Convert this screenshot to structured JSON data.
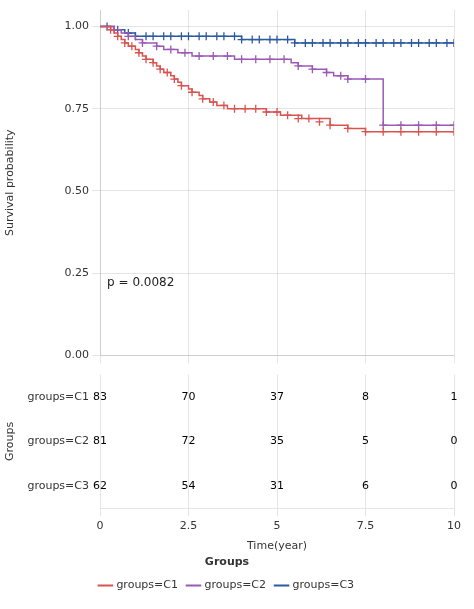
{
  "chart_data": {
    "type": "step",
    "xlabel": "Time(year)",
    "ylabel": "Survival probability",
    "annotation": "p = 0.0082",
    "legend_title": "Groups",
    "legend": "bottom",
    "grid": true,
    "xlim": [
      0,
      10
    ],
    "xticks": [
      0,
      2.5,
      5,
      7.5,
      10
    ],
    "ylim": [
      0.0,
      1.05
    ],
    "yticks": [
      {
        "value": 0.0,
        "label": "0.00"
      },
      {
        "value": 0.25,
        "label": "0.25"
      },
      {
        "value": 0.5,
        "label": "0.50"
      },
      {
        "value": 0.75,
        "label": "0.75"
      },
      {
        "value": 1.0,
        "label": "1.00"
      }
    ],
    "series": [
      {
        "name": "groups=C1",
        "color": "#d9534f",
        "marker": "cross",
        "x": [
          0.0,
          0.3,
          0.4,
          0.5,
          0.6,
          0.7,
          0.8,
          0.9,
          1.0,
          1.1,
          1.2,
          1.3,
          1.4,
          1.5,
          1.6,
          1.7,
          1.8,
          1.9,
          2.0,
          2.1,
          2.2,
          2.3,
          2.4,
          2.5,
          2.6,
          2.7,
          2.8,
          2.9,
          3.0,
          3.1,
          3.2,
          3.3,
          3.4,
          3.5,
          3.6,
          3.7,
          3.8,
          3.9,
          4.0,
          4.1,
          4.2,
          4.3,
          4.4,
          4.5,
          4.6,
          4.7,
          4.8,
          4.9,
          5.0,
          5.1,
          5.2,
          5.3,
          5.4,
          5.5,
          5.6,
          5.7,
          5.8,
          5.9,
          6.0,
          6.5,
          7.0,
          7.5,
          8.0,
          8.5,
          9.0,
          9.5,
          10.0
        ],
        "values": [
          1.0,
          0.99,
          0.98,
          0.97,
          0.96,
          0.95,
          0.94,
          0.94,
          0.93,
          0.92,
          0.91,
          0.9,
          0.9,
          0.89,
          0.88,
          0.87,
          0.86,
          0.86,
          0.85,
          0.84,
          0.83,
          0.82,
          0.82,
          0.81,
          0.8,
          0.8,
          0.79,
          0.78,
          0.78,
          0.77,
          0.77,
          0.76,
          0.76,
          0.76,
          0.75,
          0.75,
          0.75,
          0.75,
          0.75,
          0.75,
          0.75,
          0.75,
          0.75,
          0.75,
          0.75,
          0.74,
          0.74,
          0.74,
          0.74,
          0.73,
          0.73,
          0.73,
          0.73,
          0.73,
          0.73,
          0.72,
          0.72,
          0.72,
          0.72,
          0.7,
          0.69,
          0.68,
          0.68,
          0.68,
          0.68,
          0.68,
          0.68
        ],
        "censors": {
          "x": [
            0.3,
            0.5,
            0.7,
            0.9,
            1.1,
            1.3,
            1.5,
            1.7,
            1.9,
            2.1,
            2.3,
            2.6,
            2.9,
            3.2,
            3.5,
            3.8,
            4.1,
            4.4,
            4.7,
            5.0,
            5.3,
            5.6,
            5.9,
            6.2,
            6.5,
            7.0,
            7.5,
            8.0,
            8.5,
            9.0,
            9.5,
            10.0
          ],
          "values": [
            0.99,
            0.97,
            0.95,
            0.94,
            0.92,
            0.9,
            0.89,
            0.87,
            0.86,
            0.84,
            0.82,
            0.8,
            0.78,
            0.77,
            0.76,
            0.75,
            0.75,
            0.75,
            0.74,
            0.74,
            0.73,
            0.72,
            0.72,
            0.71,
            0.7,
            0.69,
            0.68,
            0.68,
            0.68,
            0.68,
            0.68,
            0.68
          ]
        }
      },
      {
        "name": "groups=C2",
        "color": "#9b59b6",
        "marker": "cross",
        "x": [
          0.0,
          0.4,
          0.6,
          0.8,
          1.0,
          1.2,
          1.4,
          1.6,
          1.8,
          2.0,
          2.2,
          2.4,
          2.6,
          2.8,
          3.0,
          3.2,
          3.4,
          3.6,
          3.8,
          4.0,
          4.2,
          4.4,
          4.6,
          4.8,
          5.0,
          5.2,
          5.4,
          5.6,
          5.8,
          6.0,
          6.2,
          6.4,
          6.6,
          6.8,
          7.0,
          7.5,
          8.0,
          8.5,
          9.0,
          9.5,
          10.0
        ],
        "values": [
          1.0,
          0.99,
          0.98,
          0.97,
          0.96,
          0.95,
          0.95,
          0.94,
          0.93,
          0.93,
          0.92,
          0.92,
          0.91,
          0.91,
          0.91,
          0.91,
          0.91,
          0.91,
          0.9,
          0.9,
          0.9,
          0.9,
          0.9,
          0.9,
          0.9,
          0.9,
          0.89,
          0.88,
          0.88,
          0.87,
          0.87,
          0.86,
          0.85,
          0.85,
          0.84,
          0.84,
          0.7,
          0.7,
          0.7,
          0.7,
          0.7
        ],
        "censors": {
          "x": [
            0.4,
            0.8,
            1.2,
            1.6,
            2.0,
            2.4,
            2.8,
            3.2,
            3.6,
            4.0,
            4.4,
            4.8,
            5.2,
            5.6,
            6.0,
            6.4,
            6.8,
            7.0,
            7.5,
            8.0,
            8.5,
            9.0,
            9.5,
            10.0
          ],
          "values": [
            0.99,
            0.97,
            0.95,
            0.94,
            0.93,
            0.92,
            0.91,
            0.91,
            0.91,
            0.9,
            0.9,
            0.9,
            0.9,
            0.88,
            0.87,
            0.86,
            0.85,
            0.84,
            0.84,
            0.7,
            0.7,
            0.7,
            0.7,
            0.7
          ]
        }
      },
      {
        "name": "groups=C3",
        "color": "#2c5aa0",
        "marker": "cross",
        "x": [
          0.0,
          0.2,
          0.4,
          0.7,
          1.0,
          1.5,
          2.0,
          3.0,
          4.0,
          5.0,
          5.5,
          6.0,
          6.5,
          7.0,
          7.5,
          8.0,
          8.5,
          9.0,
          9.5,
          10.0
        ],
        "values": [
          1.0,
          1.0,
          0.99,
          0.98,
          0.97,
          0.97,
          0.97,
          0.97,
          0.96,
          0.96,
          0.95,
          0.95,
          0.95,
          0.95,
          0.95,
          0.95,
          0.95,
          0.95,
          0.95,
          0.95
        ],
        "censors": {
          "x": [
            0.2,
            0.5,
            0.8,
            1.0,
            1.3,
            1.5,
            1.8,
            2.0,
            2.3,
            2.5,
            2.8,
            3.0,
            3.3,
            3.5,
            3.8,
            4.0,
            4.3,
            4.5,
            4.8,
            5.0,
            5.3,
            5.5,
            5.8,
            6.0,
            6.3,
            6.5,
            6.8,
            7.0,
            7.3,
            7.5,
            7.8,
            8.0,
            8.3,
            8.5,
            8.8,
            9.0,
            9.3,
            9.5,
            9.8,
            10.0
          ],
          "values": [
            1.0,
            0.99,
            0.98,
            0.97,
            0.97,
            0.97,
            0.97,
            0.97,
            0.97,
            0.97,
            0.97,
            0.97,
            0.97,
            0.97,
            0.97,
            0.96,
            0.96,
            0.96,
            0.96,
            0.96,
            0.96,
            0.95,
            0.95,
            0.95,
            0.95,
            0.95,
            0.95,
            0.95,
            0.95,
            0.95,
            0.95,
            0.95,
            0.95,
            0.95,
            0.95,
            0.95,
            0.95,
            0.95,
            0.95,
            0.95
          ]
        }
      }
    ],
    "risk_table": {
      "ylabel": "Groups",
      "x": [
        0,
        2.5,
        5,
        7.5,
        10
      ],
      "rows": [
        {
          "name": "groups=C1",
          "values": [
            83,
            70,
            37,
            8,
            1
          ]
        },
        {
          "name": "groups=C2",
          "values": [
            81,
            72,
            35,
            5,
            0
          ]
        },
        {
          "name": "groups=C3",
          "values": [
            62,
            54,
            31,
            6,
            0
          ]
        }
      ]
    }
  }
}
